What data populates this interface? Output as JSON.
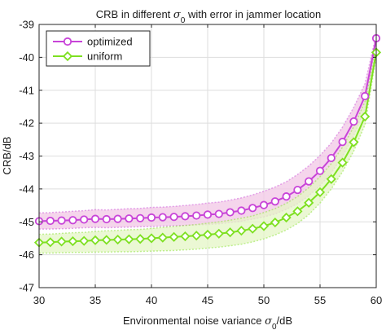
{
  "chart_data": {
    "type": "line",
    "title": "CRB in different σ₀ with error in jammer location",
    "title_parts": {
      "before": "CRB in different ",
      "symbol": "σ",
      "sub": "0",
      "after": " with error in jammer location"
    },
    "xlabel": "Environmental noise variance σ₀/dB",
    "xlabel_parts": {
      "before": "Environmental noise variance ",
      "symbol": "σ",
      "sub": "0",
      "after": "/dB"
    },
    "ylabel": "CRB/dB",
    "xlim": [
      30,
      60
    ],
    "ylim": [
      -47,
      -39
    ],
    "xticks": [
      "30",
      "35",
      "40",
      "45",
      "50",
      "55",
      "60"
    ],
    "yticks": [
      "-39",
      "-40",
      "-41",
      "-42",
      "-43",
      "-44",
      "-45",
      "-46",
      "-47"
    ],
    "grid": true,
    "legend_position": "top-left",
    "x": [
      30,
      31,
      32,
      33,
      34,
      35,
      36,
      37,
      38,
      39,
      40,
      41,
      42,
      43,
      44,
      45,
      46,
      47,
      48,
      49,
      50,
      51,
      52,
      53,
      54,
      55,
      56,
      57,
      58,
      59,
      60
    ],
    "series": [
      {
        "name": "optimized",
        "color": "#c844d8",
        "band_color": "#f2c7e6",
        "marker": "circle",
        "values": [
          -44.98,
          -44.97,
          -44.96,
          -44.95,
          -44.93,
          -44.91,
          -44.92,
          -44.91,
          -44.9,
          -44.89,
          -44.87,
          -44.86,
          -44.85,
          -44.83,
          -44.81,
          -44.78,
          -44.76,
          -44.71,
          -44.66,
          -44.58,
          -44.49,
          -44.38,
          -44.23,
          -44.03,
          -43.77,
          -43.45,
          -43.06,
          -42.57,
          -41.95,
          -41.18,
          -39.42
        ],
        "upper": [
          -44.73,
          -44.72,
          -44.7,
          -44.68,
          -44.66,
          -44.63,
          -44.64,
          -44.62,
          -44.6,
          -44.59,
          -44.56,
          -44.55,
          -44.53,
          -44.5,
          -44.47,
          -44.43,
          -44.4,
          -44.34,
          -44.27,
          -44.18,
          -44.07,
          -43.94,
          -43.78,
          -43.56,
          -43.3,
          -42.98,
          -42.6,
          -42.12,
          -41.52,
          -40.8,
          -39.3
        ],
        "lower": [
          -45.22,
          -45.22,
          -45.21,
          -45.2,
          -45.18,
          -45.17,
          -45.18,
          -45.17,
          -45.16,
          -45.15,
          -45.14,
          -45.13,
          -45.12,
          -45.11,
          -45.1,
          -45.08,
          -45.06,
          -45.02,
          -44.98,
          -44.92,
          -44.85,
          -44.76,
          -44.62,
          -44.45,
          -44.21,
          -43.9,
          -43.51,
          -43.01,
          -42.37,
          -41.55,
          -39.55
        ]
      },
      {
        "name": "uniform",
        "color": "#7ee021",
        "band_color": "#e4f6c6",
        "marker": "diamond",
        "values": [
          -45.63,
          -45.62,
          -45.6,
          -45.59,
          -45.58,
          -45.56,
          -45.55,
          -45.54,
          -45.53,
          -45.52,
          -45.5,
          -45.48,
          -45.46,
          -45.44,
          -45.42,
          -45.39,
          -45.36,
          -45.32,
          -45.27,
          -45.21,
          -45.13,
          -45.02,
          -44.87,
          -44.68,
          -44.42,
          -44.1,
          -43.7,
          -43.2,
          -42.58,
          -41.8,
          -39.85
        ],
        "upper": [
          -45.38,
          -45.37,
          -45.35,
          -45.33,
          -45.32,
          -45.29,
          -45.27,
          -45.26,
          -45.24,
          -45.23,
          -45.2,
          -45.17,
          -45.14,
          -45.11,
          -45.08,
          -45.04,
          -45.0,
          -44.95,
          -44.89,
          -44.82,
          -44.72,
          -44.6,
          -44.44,
          -44.23,
          -43.96,
          -43.63,
          -43.23,
          -42.73,
          -42.11,
          -41.35,
          -39.7
        ],
        "lower": [
          -45.95,
          -45.95,
          -45.94,
          -45.93,
          -45.93,
          -45.92,
          -45.92,
          -45.91,
          -45.91,
          -45.9,
          -45.89,
          -45.88,
          -45.87,
          -45.85,
          -45.83,
          -45.8,
          -45.77,
          -45.73,
          -45.68,
          -45.61,
          -45.52,
          -45.4,
          -45.25,
          -45.05,
          -44.78,
          -44.43,
          -44.0,
          -43.48,
          -42.85,
          -42.05,
          -39.98
        ]
      }
    ]
  }
}
